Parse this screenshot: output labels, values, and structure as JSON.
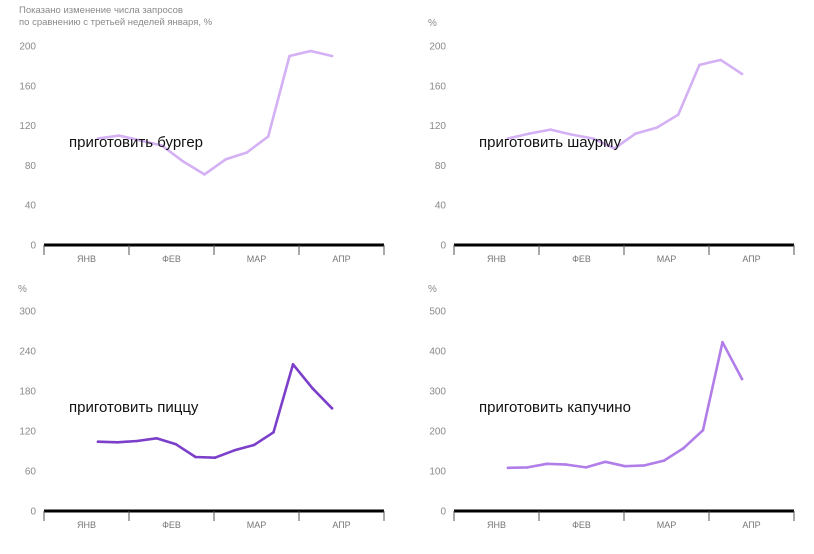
{
  "note": [
    "Показано изменение числа запросов",
    "по сравнению с третьей неделей января, %"
  ],
  "chart_data": [
    {
      "type": "line",
      "label": "приготовить бургер",
      "unit": "",
      "color": "#d4b0f4",
      "yticks": [
        0,
        40,
        80,
        120,
        160,
        200
      ],
      "ylim": [
        0,
        200
      ],
      "months": [
        "ЯНВ",
        "ФЕВ",
        "МАР",
        "АПР"
      ],
      "values": [
        107,
        110,
        105,
        100,
        84,
        71,
        86,
        93,
        109,
        190,
        195,
        190
      ]
    },
    {
      "type": "line",
      "label": "приготовить шаурму",
      "unit": "%",
      "color": "#d4b0f4",
      "yticks": [
        0,
        40,
        80,
        120,
        160,
        200
      ],
      "ylim": [
        0,
        200
      ],
      "months": [
        "ЯНВ",
        "ФЕВ",
        "МАР",
        "АПР"
      ],
      "values": [
        107,
        112,
        116,
        111,
        107,
        97,
        112,
        118,
        131,
        181,
        186,
        172
      ]
    },
    {
      "type": "line",
      "label": "приготовить пиццу",
      "unit": "%",
      "color": "#7b3fca",
      "yticks": [
        0,
        60,
        120,
        180,
        240,
        300
      ],
      "ylim": [
        0,
        300
      ],
      "months": [
        "ЯНВ",
        "ФЕВ",
        "МАР",
        "АПР"
      ],
      "values": [
        104,
        103,
        105,
        109,
        100,
        81,
        80,
        91,
        99,
        118,
        220,
        184,
        154
      ]
    },
    {
      "type": "line",
      "label": "приготовить капучино",
      "unit": "%",
      "color": "#b17de8",
      "yticks": [
        0,
        100,
        200,
        300,
        400,
        500
      ],
      "ylim": [
        0,
        500
      ],
      "months": [
        "ЯНВ",
        "ФЕВ",
        "МАР",
        "АПР"
      ],
      "values": [
        108,
        109,
        118,
        116,
        109,
        123,
        112,
        114,
        126,
        157,
        202,
        422,
        330
      ]
    }
  ]
}
